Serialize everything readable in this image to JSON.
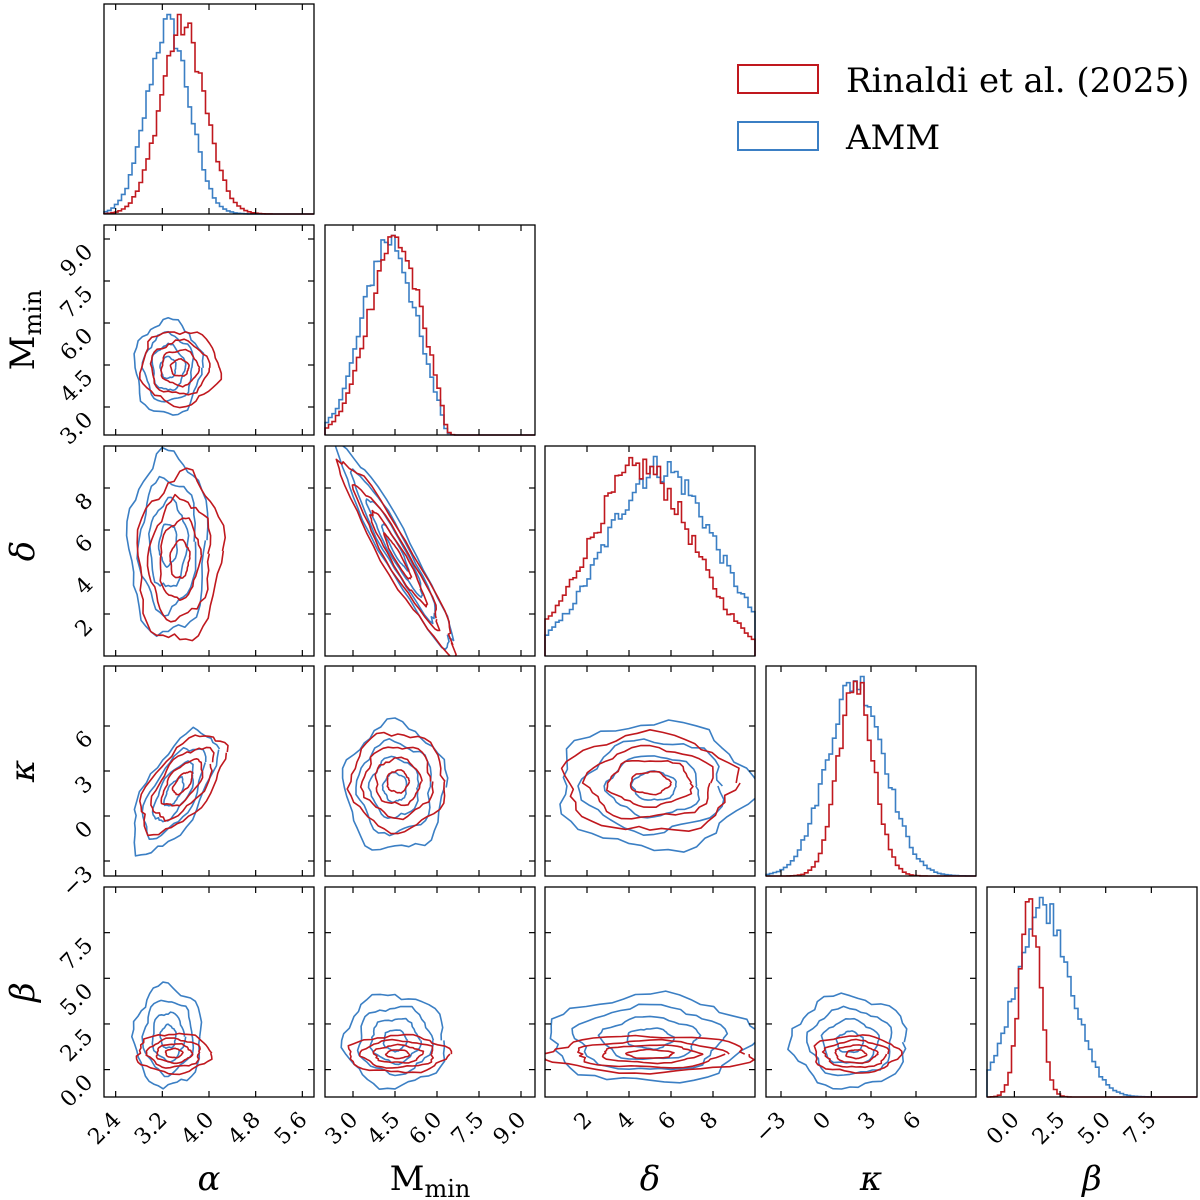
{
  "chart_data": {
    "type": "corner",
    "title": "",
    "grid": false,
    "legend_position": "top-right",
    "colors": {
      "rinaldi": "#c0181e",
      "amm": "#3b7fc4"
    },
    "legend": [
      {
        "key": "rinaldi",
        "label": "Rinaldi et al. (2025)"
      },
      {
        "key": "amm",
        "label": "AMM"
      }
    ],
    "params": [
      {
        "key": "alpha",
        "label": "α",
        "italic": true,
        "sub": "",
        "range": [
          2.2,
          5.8
        ],
        "ticks": [
          2.4,
          3.2,
          4.0,
          4.8,
          5.6
        ],
        "ticklabels": [
          "2.4",
          "3.2",
          "4.0",
          "4.8",
          "5.6"
        ]
      },
      {
        "key": "mmin",
        "label": "M",
        "italic": false,
        "sub": "min",
        "range": [
          2.0,
          9.5
        ],
        "ticks": [
          3.0,
          4.5,
          6.0,
          7.5,
          9.0
        ],
        "ticklabels": [
          "3.0",
          "4.5",
          "6.0",
          "7.5",
          "9.0"
        ]
      },
      {
        "key": "delta",
        "label": "δ",
        "italic": true,
        "sub": "",
        "range": [
          0.0,
          10.0
        ],
        "ticks": [
          2,
          4,
          6,
          8
        ],
        "ticklabels": [
          "2",
          "4",
          "6",
          "8"
        ]
      },
      {
        "key": "kappa",
        "label": "κ",
        "italic": true,
        "sub": "",
        "range": [
          -4.0,
          10.0
        ],
        "ticks": [
          -3,
          0,
          3,
          6
        ],
        "ticklabels": [
          "−3",
          "0",
          "3",
          "6"
        ]
      },
      {
        "key": "beta",
        "label": "β",
        "italic": true,
        "sub": "",
        "range": [
          -1.5,
          10.0
        ],
        "ticks": [
          0.0,
          2.5,
          5.0,
          7.5
        ],
        "ticklabels": [
          "0.0",
          "2.5",
          "5.0",
          "7.5"
        ]
      }
    ],
    "marginals": {
      "alpha": {
        "rinaldi": {
          "mean": 3.55,
          "sd": 0.38
        },
        "amm": {
          "mean": 3.3,
          "sd": 0.36
        }
      },
      "mmin": {
        "rinaldi": {
          "mean": 4.5,
          "sd": 0.95,
          "cut": 6.05
        },
        "amm": {
          "mean": 4.3,
          "sd": 0.95,
          "cut": 6.05
        }
      },
      "delta": {
        "rinaldi": {
          "mean": 4.6,
          "sd": 2.45
        },
        "amm": {
          "mean": 5.5,
          "sd": 2.6
        }
      },
      "kappa": {
        "rinaldi": {
          "mean": 2.0,
          "sd": 1.15
        },
        "amm": {
          "mean": 2.0,
          "sd": 1.9
        }
      },
      "beta": {
        "rinaldi": {
          "mean": 0.85,
          "sd": 0.55
        },
        "amm": {
          "mean": 1.6,
          "sd": 1.5
        }
      }
    },
    "levels": [
      0.55,
      1.15,
      1.75,
      2.4
    ],
    "pairs": [
      {
        "x": "alpha",
        "y": "mmin",
        "rinaldi": {
          "mx": 3.5,
          "my": 4.4,
          "sx": 0.28,
          "sy": 0.55,
          "rho": 0.0
        },
        "amm": {
          "mx": 3.3,
          "my": 4.4,
          "sx": 0.24,
          "sy": 0.7,
          "rho": 0.0
        }
      },
      {
        "x": "alpha",
        "y": "delta",
        "rinaldi": {
          "mx": 3.5,
          "my": 4.6,
          "sx": 0.3,
          "sy": 1.65,
          "rho": 0.1
        },
        "amm": {
          "mx": 3.3,
          "my": 5.3,
          "sx": 0.28,
          "sy": 1.8,
          "rho": 0.05
        }
      },
      {
        "x": "alpha",
        "y": "kappa",
        "rinaldi": {
          "mx": 3.55,
          "my": 2.2,
          "sx": 0.3,
          "sy": 1.35,
          "rho": 0.6
        },
        "amm": {
          "mx": 3.4,
          "my": 1.6,
          "sx": 0.3,
          "sy": 1.7,
          "rho": 0.65
        }
      },
      {
        "x": "alpha",
        "y": "beta",
        "rinaldi": {
          "mx": 3.4,
          "my": 0.9,
          "sx": 0.26,
          "sy": 0.45,
          "rho": 0.0
        },
        "amm": {
          "mx": 3.3,
          "my": 1.8,
          "sx": 0.24,
          "sy": 1.15,
          "rho": 0.0
        }
      },
      {
        "x": "mmin",
        "y": "delta",
        "rinaldi": {
          "mx": 4.6,
          "my": 4.7,
          "sx": 0.85,
          "sy": 1.9,
          "rho": -0.95
        },
        "amm": {
          "mx": 4.5,
          "my": 5.2,
          "sx": 0.85,
          "sy": 2.0,
          "rho": -0.95
        }
      },
      {
        "x": "mmin",
        "y": "kappa",
        "rinaldi": {
          "mx": 4.6,
          "my": 2.3,
          "sx": 0.7,
          "sy": 1.35,
          "rho": 0.0
        },
        "amm": {
          "mx": 4.5,
          "my": 1.9,
          "sx": 0.75,
          "sy": 1.75,
          "rho": 0.0
        }
      },
      {
        "x": "mmin",
        "y": "beta",
        "rinaldi": {
          "mx": 4.6,
          "my": 0.85,
          "sx": 0.75,
          "sy": 0.42,
          "rho": 0.0
        },
        "amm": {
          "mx": 4.5,
          "my": 1.6,
          "sx": 0.75,
          "sy": 1.05,
          "rho": 0.0
        }
      },
      {
        "x": "delta",
        "y": "kappa",
        "rinaldi": {
          "mx": 5.0,
          "my": 2.2,
          "sx": 1.7,
          "sy": 1.35,
          "rho": 0.0
        },
        "amm": {
          "mx": 5.2,
          "my": 2.0,
          "sx": 1.9,
          "sy": 1.75,
          "rho": 0.0
        }
      },
      {
        "x": "delta",
        "y": "beta",
        "rinaldi": {
          "mx": 5.0,
          "my": 0.85,
          "sx": 2.0,
          "sy": 0.42,
          "rho": 0.0
        },
        "amm": {
          "mx": 5.0,
          "my": 1.7,
          "sx": 2.0,
          "sy": 1.0,
          "rho": 0.0
        }
      },
      {
        "x": "kappa",
        "y": "beta",
        "rinaldi": {
          "mx": 2.0,
          "my": 0.85,
          "sx": 1.2,
          "sy": 0.42,
          "rho": 0.0
        },
        "amm": {
          "mx": 1.6,
          "my": 1.5,
          "sx": 1.6,
          "sy": 1.05,
          "rho": 0.0
        }
      }
    ]
  }
}
